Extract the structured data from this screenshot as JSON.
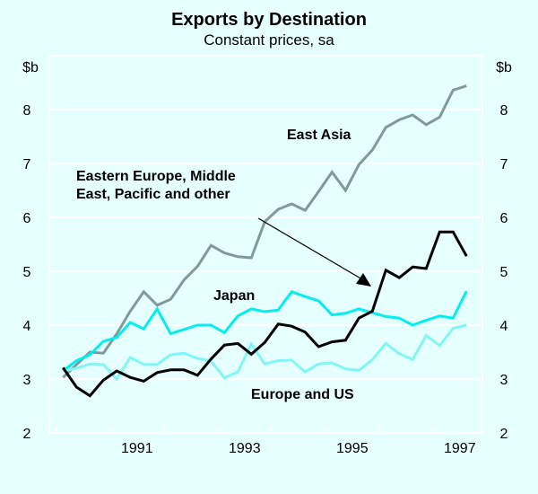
{
  "chart_data": {
    "type": "line",
    "title": "Exports by Destination",
    "subtitle": "Constant prices, sa",
    "ylabel_left": "$b",
    "ylabel_right": "$b",
    "ylim": [
      2,
      9
    ],
    "yticks": [
      2,
      3,
      4,
      5,
      6,
      7,
      8
    ],
    "xlim": [
      1989.87,
      1997.92
    ],
    "xtick_labels": [
      "1991",
      "1993",
      "1995",
      "1997"
    ],
    "x_frequency": "quarterly",
    "x_start": "1990 Q1",
    "grid": true,
    "background": "#e6ffff",
    "series": [
      {
        "name": "East Asia",
        "color": "#7f9a99",
        "values": [
          3.03,
          3.27,
          3.5,
          3.48,
          3.84,
          4.26,
          4.62,
          4.37,
          4.48,
          4.84,
          5.09,
          5.48,
          5.34,
          5.27,
          5.25,
          5.92,
          6.15,
          6.25,
          6.13,
          6.48,
          6.84,
          6.5,
          6.98,
          7.25,
          7.67,
          7.81,
          7.9,
          7.72,
          7.86,
          8.36,
          8.44
        ]
      },
      {
        "name": "Japan",
        "color": "#00eeee",
        "values": [
          3.15,
          3.34,
          3.45,
          3.7,
          3.77,
          4.05,
          3.93,
          4.3,
          3.84,
          3.92,
          4.0,
          4.0,
          3.86,
          4.17,
          4.3,
          4.25,
          4.28,
          4.62,
          4.53,
          4.45,
          4.19,
          4.22,
          4.3,
          4.23,
          4.16,
          4.13,
          4.0,
          4.09,
          4.17,
          4.13,
          4.63
        ]
      },
      {
        "name": "Europe and US",
        "color": "#80f6f6",
        "values": [
          3.15,
          3.2,
          3.28,
          3.27,
          3.0,
          3.4,
          3.27,
          3.27,
          3.45,
          3.48,
          3.38,
          3.34,
          3.02,
          3.13,
          3.65,
          3.28,
          3.34,
          3.35,
          3.13,
          3.28,
          3.3,
          3.19,
          3.16,
          3.36,
          3.66,
          3.47,
          3.36,
          3.81,
          3.62,
          3.94,
          4.0
        ]
      },
      {
        "name": "Eastern Europe, Middle East, Pacific and other",
        "color": "#000000",
        "values": [
          3.21,
          2.85,
          2.69,
          2.98,
          3.15,
          3.03,
          2.96,
          3.12,
          3.17,
          3.17,
          3.07,
          3.37,
          3.63,
          3.66,
          3.46,
          3.68,
          4.02,
          3.98,
          3.87,
          3.6,
          3.69,
          3.72,
          4.13,
          4.26,
          5.02,
          4.88,
          5.08,
          5.05,
          5.73,
          5.73,
          5.28
        ]
      }
    ],
    "annotations": {
      "east_asia": "East Asia",
      "other_line1": "Eastern Europe, Middle",
      "other_line2": "East, Pacific and other",
      "japan": "Japan",
      "europe_us": "Europe and US"
    }
  }
}
